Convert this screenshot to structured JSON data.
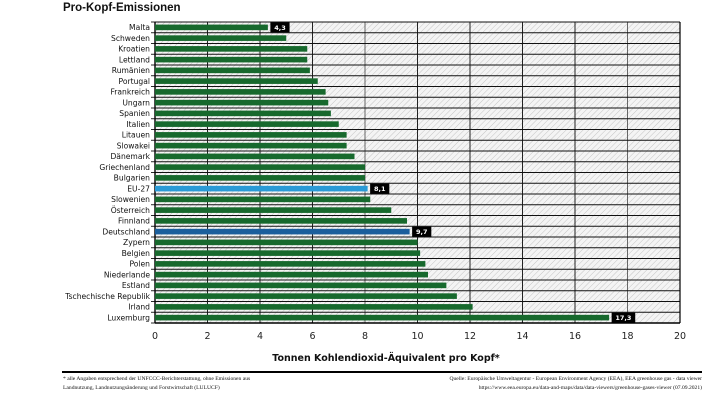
{
  "chart_data": {
    "type": "bar",
    "orientation": "horizontal",
    "title": "Pro-Kopf-Emissionen",
    "xlabel": "Tonnen Kohlendioxid-Äquivalent pro Kopf*",
    "ylabel": "",
    "xlim": [
      0,
      20
    ],
    "xticks": [
      0,
      2,
      4,
      6,
      8,
      10,
      12,
      14,
      16,
      18,
      20
    ],
    "grid": true,
    "categories": [
      "Malta",
      "Schweden",
      "Kroatien",
      "Lettland",
      "Rumänien",
      "Portugal",
      "Frankreich",
      "Ungarn",
      "Spanien",
      "Italien",
      "Litauen",
      "Slowakei",
      "Dänemark",
      "Griechenland",
      "Bulgarien",
      "EU-27",
      "Slowenien",
      "Österreich",
      "Finnland",
      "Deutschland",
      "Zypern",
      "Belgien",
      "Polen",
      "Niederlande",
      "Estland",
      "Tschechische Republik",
      "Irland",
      "Luxemburg"
    ],
    "values": [
      4.3,
      5.0,
      5.8,
      5.8,
      5.9,
      6.2,
      6.5,
      6.6,
      6.7,
      7.0,
      7.3,
      7.3,
      7.6,
      8.0,
      8.0,
      8.1,
      8.2,
      9.0,
      9.6,
      9.7,
      10.0,
      10.1,
      10.3,
      10.4,
      11.1,
      11.5,
      12.1,
      17.3
    ],
    "data_labels": {
      "Malta": "4,3",
      "EU-27": "8,1",
      "Deutschland": "9,7",
      "Luxemburg": "17,3"
    },
    "highlight": {
      "EU-27": "#2a9ad6",
      "Deutschland": "#1b5f9c"
    },
    "colors": {
      "bar": "#17692d",
      "label_bg": "#000000",
      "label_text": "#ffffff"
    }
  },
  "footnote": {
    "left_line1": "* alle Angaben entsprechend der UNFCCC-Berichterstattung, ohne Emissionen aus",
    "left_line2": "Landnutzung, Landnutzungsänderung und Forstwirtschaft (LULUCF)",
    "right_line1": "Quelle: Europäische Umweltagentur - European Environment Agency (EEA), EEA greenhouse gas - data viewer",
    "right_line2": "https://www.eea.europa.eu/data-and-maps/data/data-viewers/greenhouse-gases-viewer (07.09.2021)"
  }
}
